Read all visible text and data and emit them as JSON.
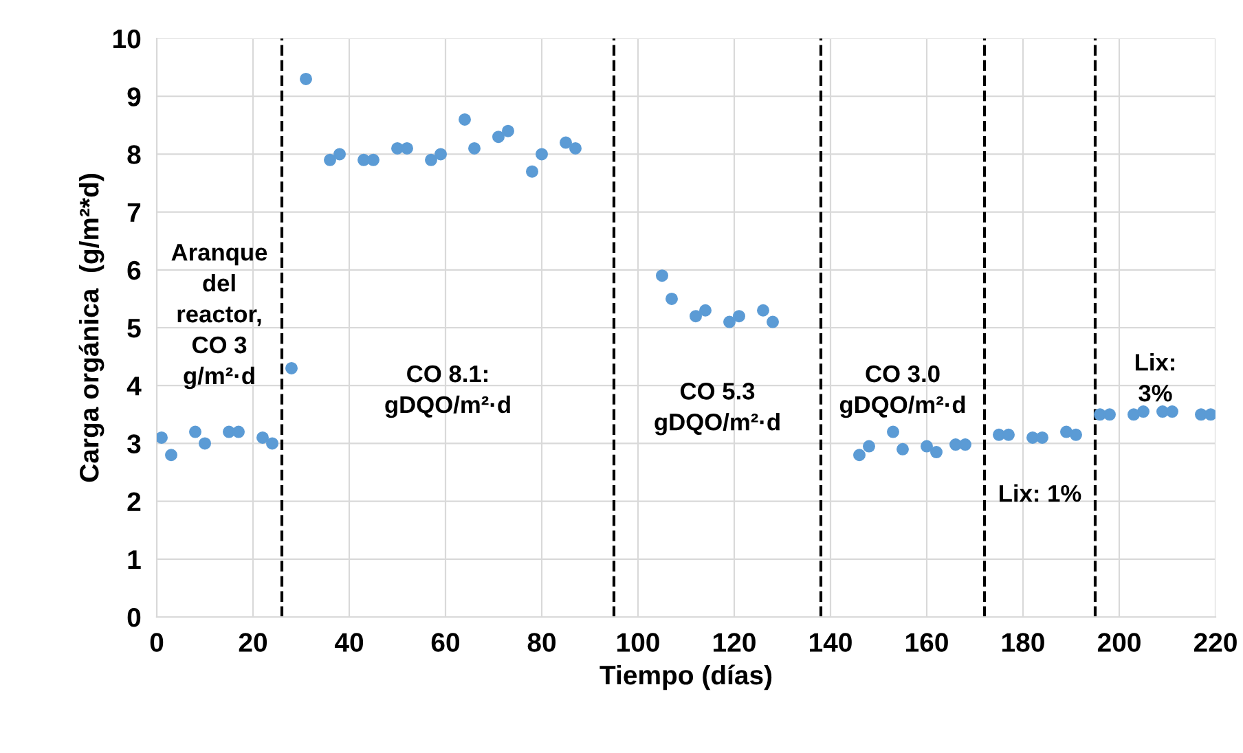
{
  "chart_data": {
    "type": "scatter",
    "xlabel": "Tiempo (días)",
    "ylabel": "Carga orgánica  (g/m²*d)",
    "x": [
      1,
      3,
      8,
      10,
      15,
      17,
      22,
      24,
      28,
      31,
      36,
      38,
      43,
      45,
      50,
      52,
      57,
      59,
      64,
      66,
      71,
      73,
      78,
      80,
      85,
      87,
      105,
      107,
      112,
      114,
      119,
      121,
      126,
      128,
      146,
      148,
      153,
      155,
      160,
      162,
      166,
      168,
      175,
      177,
      182,
      184,
      189,
      191,
      196,
      198,
      203,
      205,
      209,
      211,
      217,
      219
    ],
    "series": [
      {
        "color": "#5b9bd5",
        "values": [
          3.1,
          2.8,
          3.2,
          3.0,
          3.2,
          3.2,
          3.1,
          3.0,
          4.3,
          9.3,
          7.9,
          8.0,
          7.9,
          7.9,
          8.1,
          8.1,
          7.9,
          8.0,
          8.6,
          8.1,
          8.3,
          8.4,
          7.7,
          8.0,
          8.2,
          8.1,
          5.9,
          5.5,
          5.2,
          5.3,
          5.1,
          5.2,
          5.3,
          5.1,
          2.8,
          2.95,
          3.2,
          2.9,
          2.95,
          2.85,
          2.98,
          2.98,
          3.15,
          3.15,
          3.1,
          3.1,
          3.2,
          3.15,
          3.5,
          3.5,
          3.5,
          3.55,
          3.55,
          3.55,
          3.5,
          3.5
        ]
      }
    ],
    "xlim": [
      0,
      220
    ],
    "xticks": [
      0,
      20,
      40,
      60,
      80,
      100,
      120,
      140,
      160,
      180,
      200,
      220
    ],
    "ylim": [
      0,
      10
    ],
    "yticks": [
      0,
      1,
      2,
      3,
      4,
      5,
      6,
      7,
      8,
      9,
      10
    ],
    "grid": true,
    "marker": "circle",
    "ref_lines": [
      {
        "axis": "x",
        "value": 26,
        "color": "#000000",
        "line_style": "dashed"
      },
      {
        "axis": "x",
        "value": 95,
        "color": "#000000",
        "line_style": "dashed"
      },
      {
        "axis": "x",
        "value": 138,
        "color": "#000000",
        "line_style": "dashed"
      },
      {
        "axis": "x",
        "value": 172,
        "color": "#000000",
        "line_style": "dashed"
      },
      {
        "axis": "x",
        "value": 195,
        "color": "#000000",
        "line_style": "dashed"
      }
    ],
    "annotations": [
      "Aranque\ndel\nreactor,\nCO 3\ng/m²·d",
      "CO 8.1:\ngDQO/m²·d",
      "CO 5.3\ngDQO/m²·d",
      "CO 3.0\ngDQO/m²·d",
      "Lix: 1%",
      "Lix:\n3%"
    ]
  }
}
